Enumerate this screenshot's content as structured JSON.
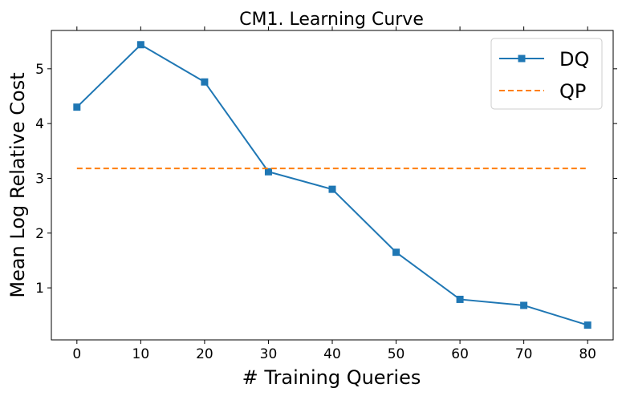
{
  "chart_data": {
    "type": "line",
    "title": "CM1. Learning Curve",
    "xlabel": "# Training Queries",
    "ylabel": "Mean Log Relative Cost",
    "xlim": [
      -4,
      84
    ],
    "ylim": [
      0.05,
      5.7
    ],
    "xticks": [
      0,
      10,
      20,
      30,
      40,
      50,
      60,
      70,
      80
    ],
    "yticks": [
      1,
      2,
      3,
      4,
      5
    ],
    "legend_position": "upper right",
    "series": [
      {
        "name": "DQ",
        "color": "#1f77b4",
        "style": "solid",
        "marker": "square",
        "x": [
          0,
          10,
          20,
          30,
          40,
          50,
          60,
          70,
          80
        ],
        "y": [
          4.3,
          5.44,
          4.76,
          3.12,
          2.8,
          1.65,
          0.79,
          0.68,
          0.32
        ]
      },
      {
        "name": "QP",
        "color": "#ff7f0e",
        "style": "dashed",
        "marker": "none",
        "x": [
          0,
          80
        ],
        "y": [
          3.18,
          3.18
        ]
      }
    ]
  }
}
